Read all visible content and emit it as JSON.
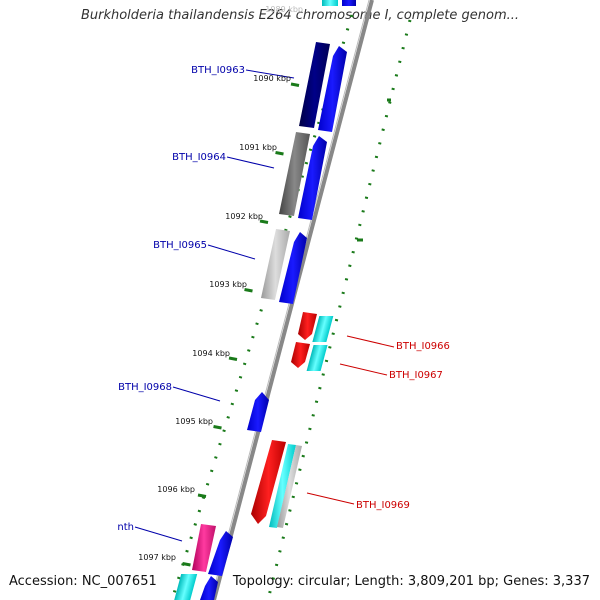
{
  "title": "Burkholderia thailandensis E264 chromosome I, complete genom...",
  "footer": {
    "accession": "Accession: NC_007651",
    "topology": "Topology: circular; Length: 3,809,201 bp; Genes: 3,337"
  },
  "ticks": [
    {
      "label": "1089 kbp",
      "kbp": 1089
    },
    {
      "label": "1090 kbp",
      "kbp": 1090
    },
    {
      "label": "1091 kbp",
      "kbp": 1091
    },
    {
      "label": "1092 kbp",
      "kbp": 1092
    },
    {
      "label": "1093 kbp",
      "kbp": 1093
    },
    {
      "label": "1094 kbp",
      "kbp": 1094
    },
    {
      "label": "1095 kbp",
      "kbp": 1095
    },
    {
      "label": "1096 kbp",
      "kbp": 1096
    },
    {
      "label": "1097 kbp",
      "kbp": 1097
    }
  ],
  "genes_left": [
    {
      "label": "BTH_I0963",
      "color": "#0000aa"
    },
    {
      "label": "BTH_I0964",
      "color": "#0000aa"
    },
    {
      "label": "BTH_I0965",
      "color": "#0000aa"
    },
    {
      "label": "BTH_I0968",
      "color": "#0000aa"
    },
    {
      "label": "nth",
      "color": "#0000aa"
    }
  ],
  "genes_right": [
    {
      "label": "BTH_I0966",
      "color": "#cc0000"
    },
    {
      "label": "BTH_I0967",
      "color": "#cc0000"
    },
    {
      "label": "BTH_I0969",
      "color": "#cc0000"
    }
  ],
  "colors": {
    "forward_cds": "#0000ee",
    "reverse_cds": "#ee0000",
    "rna": "#00dddd",
    "backbone": "#888888",
    "gc_skew": "#1a7a1a",
    "misc_feature": "#e0188a"
  }
}
